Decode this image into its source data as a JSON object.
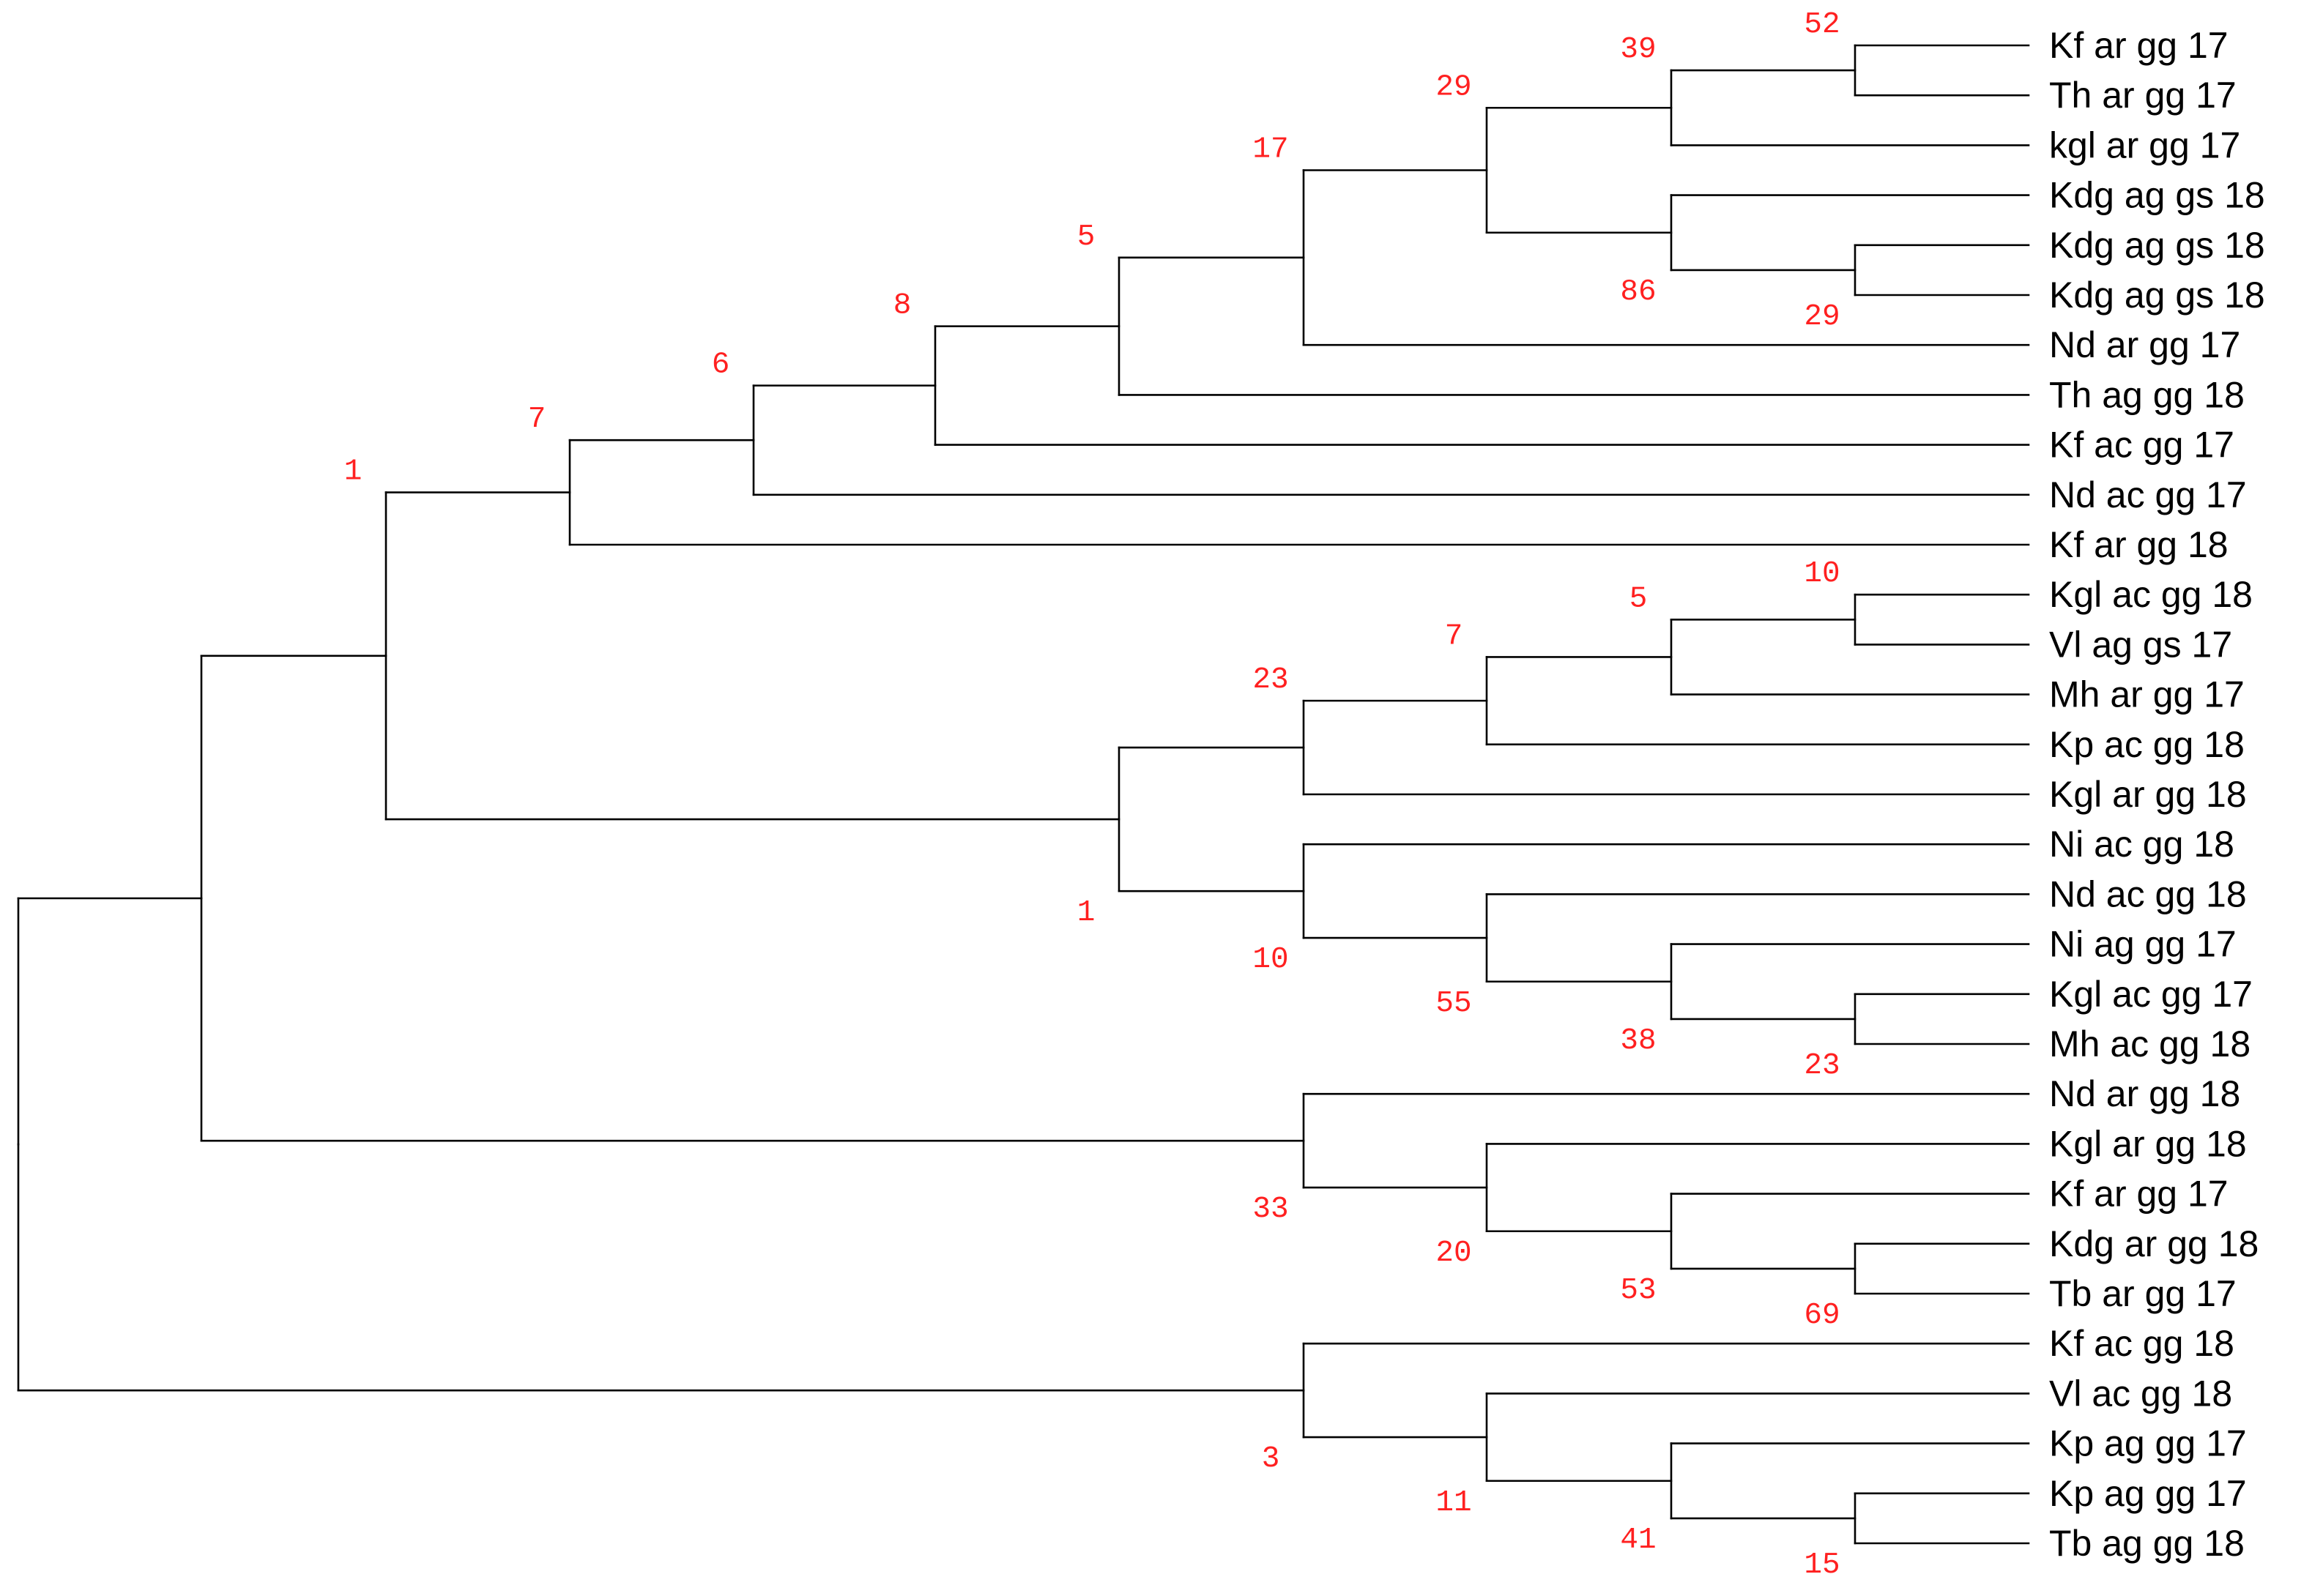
{
  "figure": {
    "type": "dendrogram",
    "label_color": "#ff2020",
    "line_color": "#000000",
    "leaves": [
      "Kf ar gg 17",
      "Th ar gg 17",
      "kgl ar gg 17",
      "Kdg ag gs 18",
      "Kdg ag gs 18",
      "Kdg ag gs 18",
      "Nd ar gg 17",
      "Th ag gg 18",
      "Kf ac gg 17",
      "Nd ac gg 17",
      "Kf ar gg 18",
      "Kgl ac gg 18",
      "Vl ag gs 17",
      "Mh ar gg 17",
      "Kp ac gg 18",
      "Kgl ar gg 18",
      "Ni ac gg 18",
      "Nd ac gg 18",
      "Ni ag gg 17",
      "Kgl ac gg 17",
      "Mh ac gg 18",
      "Nd ar gg 18",
      "Kgl ar gg 18",
      "Kf ar gg 17",
      "Kdg ar gg 18",
      "Tb ar gg 17",
      "Kf ac gg 18",
      "Vl ac gg 18",
      "Kp ag gg 17",
      "Kp ag gg 17",
      "Tb ag gg 18"
    ],
    "nodes": [
      {
        "id": "n52",
        "children": [
          "L0",
          "L1"
        ],
        "support": "52"
      },
      {
        "id": "n39",
        "children": [
          "n52",
          "L2"
        ],
        "support": "39"
      },
      {
        "id": "n29b",
        "children": [
          "L4",
          "L5"
        ],
        "support": "29"
      },
      {
        "id": "n86",
        "children": [
          "L3",
          "n29b"
        ],
        "support": "86"
      },
      {
        "id": "n29a",
        "children": [
          "n39",
          "n86"
        ],
        "support": "29"
      },
      {
        "id": "n17",
        "children": [
          "n29a",
          "L6"
        ],
        "support": "17"
      },
      {
        "id": "n5a",
        "children": [
          "n17",
          "L7"
        ],
        "support": "5"
      },
      {
        "id": "n8",
        "children": [
          "n5a",
          "L8"
        ],
        "support": "8"
      },
      {
        "id": "n6",
        "children": [
          "n8",
          "L9"
        ],
        "support": "6"
      },
      {
        "id": "n7a",
        "children": [
          "n6",
          "L10"
        ],
        "support": "7"
      },
      {
        "id": "n10a",
        "children": [
          "L11",
          "L12"
        ],
        "support": "10"
      },
      {
        "id": "n5b",
        "children": [
          "n10a",
          "L13"
        ],
        "support": "5"
      },
      {
        "id": "n7b",
        "children": [
          "n5b",
          "L14"
        ],
        "support": "7"
      },
      {
        "id": "n23a",
        "children": [
          "n7b",
          "L15"
        ],
        "support": "23"
      },
      {
        "id": "n23b",
        "children": [
          "L19",
          "L20"
        ],
        "support": "23"
      },
      {
        "id": "n38",
        "children": [
          "L18",
          "n23b"
        ],
        "support": "38"
      },
      {
        "id": "n55",
        "children": [
          "L17",
          "n38"
        ],
        "support": "55"
      },
      {
        "id": "n10b",
        "children": [
          "L16",
          "n55"
        ],
        "support": "10"
      },
      {
        "id": "n1b",
        "children": [
          "n23a",
          "n10b"
        ],
        "support": "1"
      },
      {
        "id": "n1a",
        "children": [
          "n7a",
          "n1b"
        ],
        "support": "1"
      },
      {
        "id": "n69",
        "children": [
          "L24",
          "L25"
        ],
        "support": "69"
      },
      {
        "id": "n53",
        "children": [
          "L23",
          "n69"
        ],
        "support": "53"
      },
      {
        "id": "n20",
        "children": [
          "L22",
          "n53"
        ],
        "support": "20"
      },
      {
        "id": "n33",
        "children": [
          "L21",
          "n20"
        ],
        "support": "33"
      },
      {
        "id": "nAB",
        "children": [
          "n1a",
          "n33"
        ],
        "support": ""
      },
      {
        "id": "n15",
        "children": [
          "L29",
          "L30"
        ],
        "support": "15"
      },
      {
        "id": "n41",
        "children": [
          "L28",
          "n15"
        ],
        "support": "41"
      },
      {
        "id": "n11",
        "children": [
          "L27",
          "n41"
        ],
        "support": "11"
      },
      {
        "id": "n3",
        "children": [
          "L26",
          "n11"
        ],
        "support": "3"
      },
      {
        "id": "root",
        "children": [
          "nAB",
          "n3"
        ],
        "support": ""
      }
    ]
  }
}
